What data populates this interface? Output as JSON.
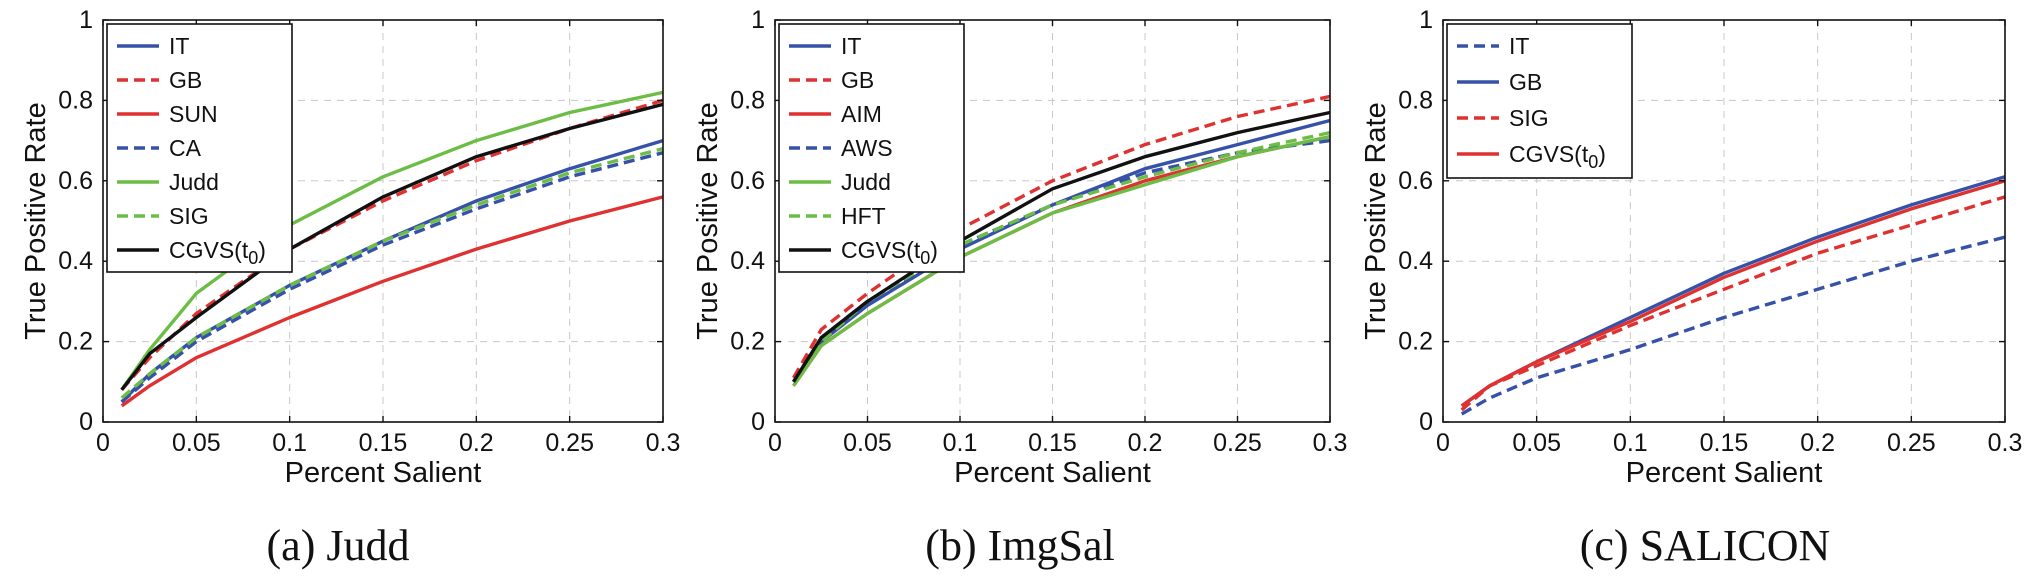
{
  "colors": {
    "blue": "#3651a8",
    "red": "#e03131",
    "green": "#6cbd45",
    "black": "#111111"
  },
  "chart_data": [
    {
      "type": "line",
      "caption": "(a) Judd",
      "xlabel": "Percent Salient",
      "ylabel": "True Positive Rate",
      "xlim": [
        0,
        0.3
      ],
      "ylim": [
        0,
        1
      ],
      "xticks": [
        "0",
        "0.05",
        "0.1",
        "0.15",
        "0.2",
        "0.25",
        "0.3"
      ],
      "yticks": [
        "0",
        "0.2",
        "0.4",
        "0.6",
        "0.8",
        "1"
      ],
      "grid": true,
      "legend_position": "top-left",
      "x": [
        0.01,
        0.025,
        0.05,
        0.1,
        0.15,
        0.2,
        0.25,
        0.3
      ],
      "series": [
        {
          "name": "IT",
          "color": "blue",
          "dash": "solid",
          "values": [
            0.05,
            0.12,
            0.21,
            0.34,
            0.45,
            0.55,
            0.63,
            0.7
          ]
        },
        {
          "name": "GB",
          "color": "red",
          "dash": "dashed",
          "values": [
            0.08,
            0.16,
            0.27,
            0.43,
            0.55,
            0.65,
            0.73,
            0.8
          ]
        },
        {
          "name": "SUN",
          "color": "red",
          "dash": "solid",
          "values": [
            0.04,
            0.09,
            0.16,
            0.26,
            0.35,
            0.43,
            0.5,
            0.56
          ]
        },
        {
          "name": "CA",
          "color": "blue",
          "dash": "dashed",
          "values": [
            0.05,
            0.11,
            0.2,
            0.33,
            0.44,
            0.53,
            0.61,
            0.67
          ]
        },
        {
          "name": "Judd",
          "color": "green",
          "dash": "solid",
          "values": [
            0.08,
            0.18,
            0.32,
            0.49,
            0.61,
            0.7,
            0.77,
            0.82
          ]
        },
        {
          "name": "SIG",
          "color": "green",
          "dash": "dashed",
          "values": [
            0.06,
            0.12,
            0.21,
            0.34,
            0.45,
            0.54,
            0.62,
            0.68
          ]
        },
        {
          "name": "CGVS(t0)",
          "color": "black",
          "dash": "solid",
          "values": [
            0.08,
            0.17,
            0.26,
            0.43,
            0.56,
            0.66,
            0.73,
            0.79
          ]
        }
      ]
    },
    {
      "type": "line",
      "caption": "(b) ImgSal",
      "xlabel": "Percent Salient",
      "ylabel": "True Positive Rate",
      "xlim": [
        0,
        0.3
      ],
      "ylim": [
        0,
        1
      ],
      "xticks": [
        "0",
        "0.05",
        "0.1",
        "0.15",
        "0.2",
        "0.25",
        "0.3"
      ],
      "yticks": [
        "0",
        "0.2",
        "0.4",
        "0.6",
        "0.8",
        "1"
      ],
      "grid": true,
      "legend_position": "top-left",
      "x": [
        0.01,
        0.025,
        0.05,
        0.1,
        0.15,
        0.2,
        0.25,
        0.3
      ],
      "series": [
        {
          "name": "IT",
          "color": "blue",
          "dash": "solid",
          "values": [
            0.1,
            0.2,
            0.29,
            0.43,
            0.54,
            0.63,
            0.69,
            0.75
          ]
        },
        {
          "name": "GB",
          "color": "red",
          "dash": "dashed",
          "values": [
            0.11,
            0.23,
            0.32,
            0.48,
            0.6,
            0.69,
            0.76,
            0.81
          ]
        },
        {
          "name": "AIM",
          "color": "red",
          "dash": "solid",
          "values": [
            0.09,
            0.19,
            0.27,
            0.41,
            0.52,
            0.6,
            0.66,
            0.71
          ]
        },
        {
          "name": "AWS",
          "color": "blue",
          "dash": "dashed",
          "values": [
            0.1,
            0.21,
            0.3,
            0.44,
            0.54,
            0.62,
            0.67,
            0.7
          ]
        },
        {
          "name": "Judd",
          "color": "green",
          "dash": "solid",
          "values": [
            0.09,
            0.19,
            0.27,
            0.41,
            0.52,
            0.59,
            0.66,
            0.71
          ]
        },
        {
          "name": "HFT",
          "color": "green",
          "dash": "dashed",
          "values": [
            0.1,
            0.2,
            0.3,
            0.44,
            0.54,
            0.61,
            0.67,
            0.72
          ]
        },
        {
          "name": "CGVS(t0)",
          "color": "black",
          "dash": "solid",
          "values": [
            0.1,
            0.21,
            0.3,
            0.45,
            0.58,
            0.66,
            0.72,
            0.77
          ]
        }
      ]
    },
    {
      "type": "line",
      "caption": "(c) SALICON",
      "xlabel": "Percent Salient",
      "ylabel": "True Positive Rate",
      "xlim": [
        0,
        0.3
      ],
      "ylim": [
        0,
        1
      ],
      "xticks": [
        "0",
        "0.05",
        "0.1",
        "0.15",
        "0.2",
        "0.25",
        "0.3"
      ],
      "yticks": [
        "0",
        "0.2",
        "0.4",
        "0.6",
        "0.8",
        "1"
      ],
      "grid": true,
      "legend_position": "top-left",
      "x": [
        0.01,
        0.025,
        0.05,
        0.1,
        0.15,
        0.2,
        0.25,
        0.3
      ],
      "series": [
        {
          "name": "IT",
          "color": "blue",
          "dash": "dashed",
          "values": [
            0.02,
            0.06,
            0.11,
            0.18,
            0.26,
            0.33,
            0.4,
            0.46
          ]
        },
        {
          "name": "GB",
          "color": "blue",
          "dash": "solid",
          "values": [
            0.04,
            0.09,
            0.15,
            0.26,
            0.37,
            0.46,
            0.54,
            0.61
          ]
        },
        {
          "name": "SIG",
          "color": "red",
          "dash": "dashed",
          "values": [
            0.03,
            0.09,
            0.14,
            0.24,
            0.33,
            0.42,
            0.49,
            0.56
          ]
        },
        {
          "name": "CGVS(t0)",
          "color": "red",
          "dash": "solid",
          "values": [
            0.04,
            0.09,
            0.15,
            0.25,
            0.36,
            0.45,
            0.53,
            0.6
          ]
        }
      ]
    }
  ]
}
